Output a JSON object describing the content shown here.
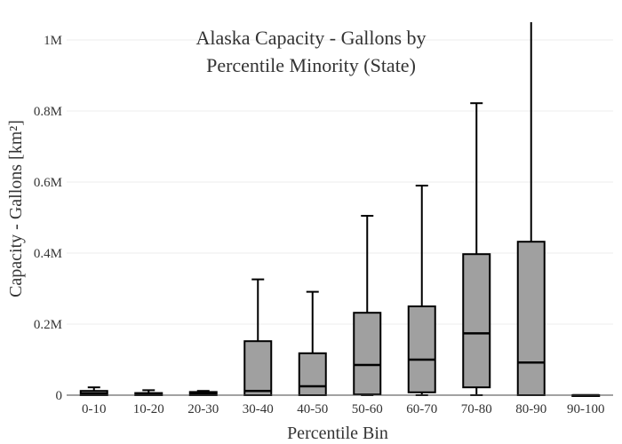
{
  "chart_data": {
    "type": "box",
    "title_line1": "Alaska Capacity - Gallons by",
    "title_line2": "Percentile Minority (State)",
    "xlabel": "Percentile Bin",
    "ylabel": "Capacity - Gallons  [km²]",
    "ylim": [
      0,
      1000000
    ],
    "yticks": [
      {
        "value": 0,
        "label": "0"
      },
      {
        "value": 200000,
        "label": "0.2M"
      },
      {
        "value": 400000,
        "label": "0.4M"
      },
      {
        "value": 600000,
        "label": "0.6M"
      },
      {
        "value": 800000,
        "label": "0.8M"
      },
      {
        "value": 1000000,
        "label": "1M"
      }
    ],
    "grid": true,
    "categories": [
      "0-10",
      "10-20",
      "20-30",
      "30-40",
      "40-50",
      "50-60",
      "60-70",
      "70-80",
      "80-90",
      "90-100"
    ],
    "boxes": [
      {
        "min": 0,
        "q1": 0,
        "median": 5000,
        "q3": 12000,
        "max": 22000
      },
      {
        "min": 0,
        "q1": 0,
        "median": 3000,
        "q3": 6000,
        "max": 14000
      },
      {
        "min": 0,
        "q1": 0,
        "median": 4000,
        "q3": 9000,
        "max": 12000
      },
      {
        "min": 0,
        "q1": 0,
        "median": 12000,
        "q3": 152000,
        "max": 326000
      },
      {
        "min": 0,
        "q1": 0,
        "median": 25000,
        "q3": 118000,
        "max": 291000
      },
      {
        "min": 0,
        "q1": 2000,
        "median": 85000,
        "q3": 232000,
        "max": 505000
      },
      {
        "min": 0,
        "q1": 8000,
        "median": 100000,
        "q3": 250000,
        "max": 590000
      },
      {
        "min": 0,
        "q1": 22000,
        "median": 174000,
        "q3": 397000,
        "max": 822000
      },
      {
        "min": 0,
        "q1": 0,
        "median": 92000,
        "q3": 432000,
        "max": 1050000
      },
      {
        "min": 0,
        "q1": 0,
        "median": 0,
        "q3": 0,
        "max": 0
      }
    ]
  }
}
